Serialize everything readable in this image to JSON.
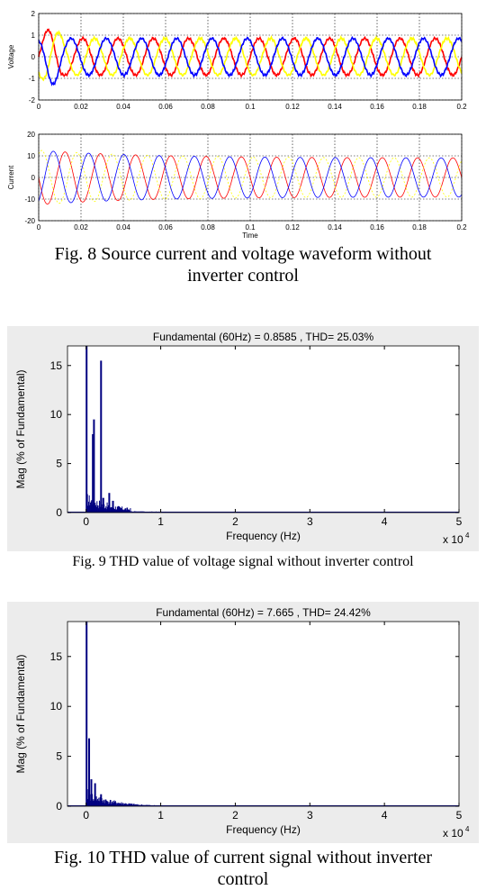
{
  "colors": {
    "phase_a": "#ff0000",
    "phase_b": "#ffff00",
    "phase_c": "#0000ff",
    "spectrum": "#000080",
    "panel_bg": "#ececec"
  },
  "chart_data": [
    {
      "type": "line",
      "xlabel": "",
      "ylabel": "Voltage",
      "xlim": [
        0,
        0.2
      ],
      "ylim": [
        -2,
        2
      ],
      "x_ticks": [
        "0",
        "0.02",
        "0.04",
        "0.06",
        "0.08",
        "0.1",
        "0.12",
        "0.14",
        "0.16",
        "0.18",
        "0.2"
      ],
      "y_ticks": [
        "-2",
        "-1",
        "0",
        "1",
        "2"
      ],
      "grid": true,
      "frequency_hz": 60,
      "series": [
        {
          "color": "#ff0000",
          "amplitude": 0.85,
          "phase_deg": 0
        },
        {
          "color": "#ffff00",
          "amplitude": 0.85,
          "phase_deg": -120
        },
        {
          "color": "#0000ff",
          "amplitude": 0.85,
          "phase_deg": 120
        }
      ]
    },
    {
      "type": "line",
      "xlabel": "Time",
      "ylabel": "Current",
      "xlim": [
        0,
        0.2
      ],
      "ylim": [
        -20,
        20
      ],
      "x_ticks": [
        "0",
        "0.02",
        "0.04",
        "0.06",
        "0.08",
        "0.1",
        "0.12",
        "0.14",
        "0.16",
        "0.18",
        "0.2"
      ],
      "y_ticks": [
        "-20",
        "-10",
        "0",
        "10",
        "20"
      ],
      "grid": true,
      "frequency_hz": 60,
      "series": [
        {
          "color": "#ff0000",
          "amplitude": 9,
          "phase_deg": 180
        },
        {
          "color": "#ffff00",
          "amplitude": 9,
          "phase_deg": 60
        },
        {
          "color": "#0000ff",
          "amplitude": 9,
          "phase_deg": -60
        }
      ]
    },
    {
      "type": "bar",
      "title": "Fundamental (60Hz) = 0.8585 , THD= 25.03%",
      "xlabel": "Frequency (Hz)",
      "ylabel": "Mag (% of Fundamental)",
      "xlim": [
        -0.25,
        5
      ],
      "ylim": [
        0,
        17
      ],
      "x_ticks": [
        "0",
        "1",
        "2",
        "3",
        "4",
        "5"
      ],
      "y_ticks": [
        "0",
        "5",
        "10",
        "15"
      ],
      "x_exponent": "x 10",
      "x_exponent_power": "4",
      "peaks": [
        {
          "x": 0.006,
          "value": 100
        },
        {
          "x": 0.09,
          "value": 8
        },
        {
          "x": 0.105,
          "value": 9.5
        },
        {
          "x": 0.2,
          "value": 15.5
        },
        {
          "x": 0.23,
          "value": 1.5
        },
        {
          "x": 0.31,
          "value": 2
        },
        {
          "x": 0.36,
          "value": 1.2
        }
      ]
    },
    {
      "type": "bar",
      "title": "Fundamental (60Hz) = 7.665 , THD= 24.42%",
      "xlabel": "Frequency (Hz)",
      "ylabel": "Mag (% of Fundamental)",
      "xlim": [
        -0.25,
        5
      ],
      "ylim": [
        0,
        18.5
      ],
      "x_ticks": [
        "0",
        "1",
        "2",
        "3",
        "4",
        "5"
      ],
      "y_ticks": [
        "0",
        "5",
        "10",
        "15"
      ],
      "x_exponent": "x 10",
      "x_exponent_power": "4",
      "peaks": [
        {
          "x": 0.006,
          "value": 100
        },
        {
          "x": 0.04,
          "value": 6.8
        },
        {
          "x": 0.07,
          "value": 2.7
        },
        {
          "x": 0.12,
          "value": 2.3
        },
        {
          "x": 0.2,
          "value": 1.2
        }
      ]
    }
  ],
  "captions": {
    "fig8_line1": "Fig. 8 Source current and voltage waveform without",
    "fig8_line2": "inverter control",
    "fig9": "Fig. 9 THD value of voltage signal without inverter control",
    "fig10_line1": "Fig. 10 THD value of current signal without inverter",
    "fig10_line2": "control"
  }
}
